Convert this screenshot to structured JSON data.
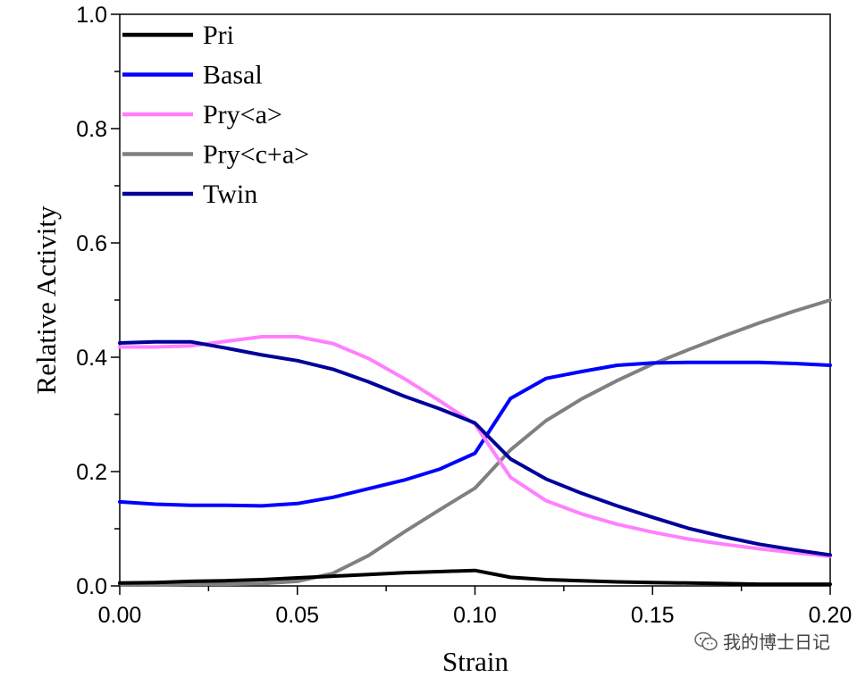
{
  "chart_data": {
    "type": "line",
    "title": "",
    "xlabel": "Strain",
    "ylabel": "Relative Activity",
    "xlim": [
      0.0,
      0.2
    ],
    "ylim": [
      0.0,
      1.0
    ],
    "xticks": [
      "0.00",
      "0.05",
      "0.10",
      "0.15",
      "0.20"
    ],
    "xtick_values": [
      0.0,
      0.05,
      0.1,
      0.15,
      0.2
    ],
    "yticks": [
      "0.0",
      "0.2",
      "0.4",
      "0.6",
      "0.8",
      "1.0"
    ],
    "ytick_values": [
      0.0,
      0.2,
      0.4,
      0.6,
      0.8,
      1.0
    ],
    "grid": false,
    "legend_position": "top-left",
    "x": [
      0.0,
      0.01,
      0.02,
      0.03,
      0.04,
      0.05,
      0.06,
      0.07,
      0.08,
      0.09,
      0.1,
      0.11,
      0.12,
      0.13,
      0.14,
      0.15,
      0.16,
      0.17,
      0.18,
      0.19,
      0.2
    ],
    "series": [
      {
        "name": "Pri",
        "color": "#000000",
        "values": [
          0.005,
          0.006,
          0.008,
          0.009,
          0.011,
          0.014,
          0.017,
          0.02,
          0.023,
          0.025,
          0.027,
          0.015,
          0.011,
          0.009,
          0.007,
          0.006,
          0.005,
          0.004,
          0.003,
          0.003,
          0.003
        ]
      },
      {
        "name": "Basal",
        "color": "#0000ff",
        "values": [
          0.147,
          0.143,
          0.141,
          0.141,
          0.14,
          0.144,
          0.155,
          0.17,
          0.185,
          0.204,
          0.232,
          0.328,
          0.363,
          0.375,
          0.386,
          0.39,
          0.391,
          0.391,
          0.391,
          0.389,
          0.386
        ]
      },
      {
        "name": "Pry<a>",
        "color": "#ff80ff",
        "values": [
          0.418,
          0.418,
          0.42,
          0.428,
          0.436,
          0.436,
          0.424,
          0.398,
          0.363,
          0.324,
          0.283,
          0.19,
          0.149,
          0.126,
          0.108,
          0.094,
          0.082,
          0.073,
          0.065,
          0.058,
          0.052
        ]
      },
      {
        "name": "Pry<c+a>",
        "color": "#808080",
        "values": [
          0.002,
          0.002,
          0.003,
          0.003,
          0.004,
          0.008,
          0.022,
          0.053,
          0.094,
          0.133,
          0.171,
          0.238,
          0.289,
          0.327,
          0.359,
          0.388,
          0.413,
          0.437,
          0.46,
          0.481,
          0.5
        ]
      },
      {
        "name": "Twin",
        "color": "#000099",
        "values": [
          0.425,
          0.427,
          0.427,
          0.416,
          0.404,
          0.394,
          0.379,
          0.357,
          0.332,
          0.31,
          0.285,
          0.222,
          0.187,
          0.162,
          0.14,
          0.12,
          0.101,
          0.086,
          0.073,
          0.063,
          0.054
        ]
      }
    ]
  },
  "watermark": {
    "text": "我的博士日记",
    "icon": "wechat-icon"
  }
}
